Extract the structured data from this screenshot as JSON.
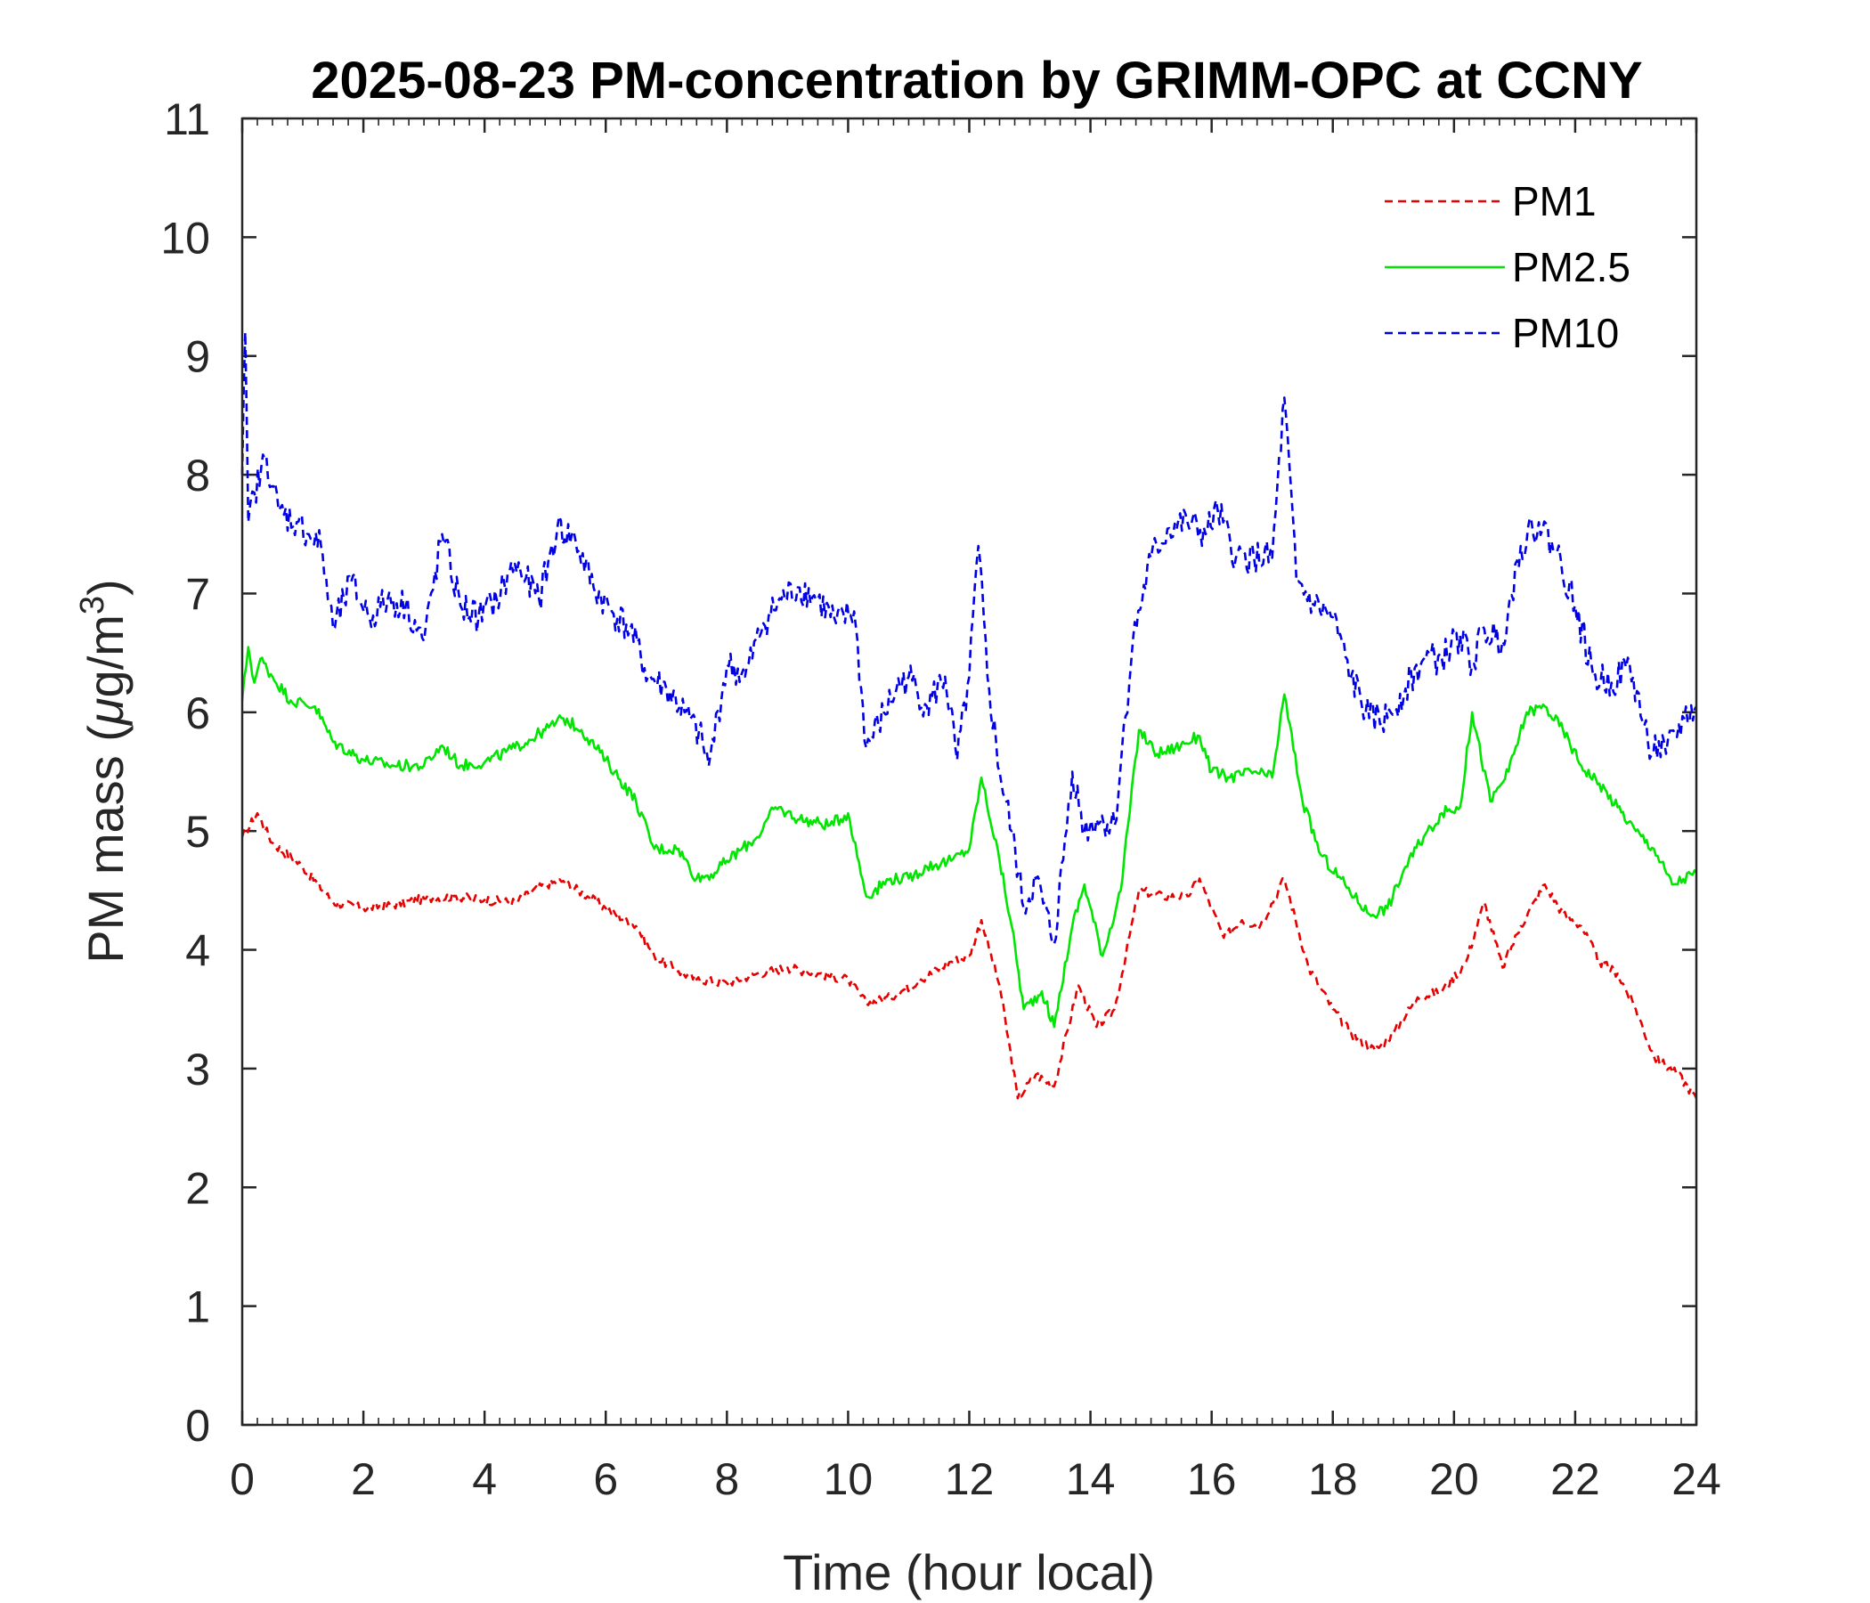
{
  "chart_data": {
    "type": "line",
    "title": "2025-08-23 PM-concentration by GRIMM-OPC at CCNY",
    "xlabel": "Time (hour local)",
    "ylabel_prefix": "PM mass (",
    "ylabel_mu": "μ",
    "ylabel_unit": "g/m",
    "ylabel_sup": "3",
    "ylabel_suffix": ")",
    "xlim": [
      0,
      24
    ],
    "ylim": [
      0,
      11
    ],
    "xticks": [
      0,
      2,
      4,
      6,
      8,
      10,
      12,
      14,
      16,
      18,
      20,
      22,
      24
    ],
    "xtick_labels": [
      "0",
      "2",
      "4",
      "6",
      "8",
      "10",
      "12",
      "14",
      "16",
      "18",
      "20",
      "22",
      "24"
    ],
    "yticks": [
      0,
      1,
      2,
      3,
      4,
      5,
      6,
      7,
      8,
      9,
      10,
      11
    ],
    "ytick_labels": [
      "0",
      "1",
      "2",
      "3",
      "4",
      "5",
      "6",
      "7",
      "8",
      "9",
      "10",
      "11"
    ],
    "legend_position": "top-right",
    "series": [
      {
        "name": "PM1",
        "color": "#e60000",
        "style": "dashed",
        "x": [
          0,
          0.25,
          0.5,
          1,
          1.5,
          2,
          2.5,
          3,
          3.5,
          4,
          4.5,
          5,
          5.3,
          5.7,
          6,
          6.5,
          6.8,
          7.2,
          7.5,
          8,
          8.5,
          9,
          9.5,
          10,
          10.3,
          10.7,
          11.2,
          11.7,
          12,
          12.2,
          12.5,
          12.8,
          13.1,
          13.4,
          13.8,
          14.1,
          14.4,
          14.8,
          15.2,
          15.6,
          15.8,
          16.2,
          16.5,
          16.8,
          17.2,
          17.6,
          18,
          18.3,
          18.7,
          19,
          19.4,
          19.8,
          20.2,
          20.5,
          20.8,
          21.1,
          21.5,
          21.8,
          22.1,
          22.4,
          22.7,
          23,
          23.3,
          23.7,
          24
        ],
        "values": [
          4.95,
          5.15,
          4.9,
          4.7,
          4.4,
          4.35,
          4.38,
          4.43,
          4.45,
          4.42,
          4.4,
          4.55,
          4.58,
          4.45,
          4.35,
          4.2,
          3.95,
          3.82,
          3.75,
          3.72,
          3.8,
          3.85,
          3.8,
          3.75,
          3.55,
          3.6,
          3.75,
          3.9,
          3.95,
          4.25,
          3.7,
          2.75,
          2.95,
          2.85,
          3.7,
          3.35,
          3.5,
          4.5,
          4.45,
          4.45,
          4.6,
          4.1,
          4.25,
          4.2,
          4.6,
          3.85,
          3.5,
          3.3,
          3.15,
          3.3,
          3.6,
          3.65,
          3.9,
          4.4,
          3.85,
          4.2,
          4.55,
          4.3,
          4.2,
          3.9,
          3.8,
          3.5,
          3.1,
          2.95,
          2.75
        ]
      },
      {
        "name": "PM2.5",
        "color": "#00e600",
        "style": "solid",
        "x": [
          0,
          0.1,
          0.2,
          0.3,
          0.5,
          0.8,
          1.2,
          1.5,
          2,
          2.5,
          3,
          3.3,
          3.6,
          4,
          4.5,
          5,
          5.3,
          5.6,
          6,
          6.5,
          6.8,
          7.2,
          7.5,
          7.8,
          8,
          8.5,
          8.8,
          9.2,
          9.7,
          10,
          10.3,
          10.7,
          11,
          11.3,
          11.7,
          12,
          12.2,
          12.5,
          12.7,
          12.9,
          13.2,
          13.4,
          13.7,
          13.9,
          14.2,
          14.5,
          14.8,
          15.1,
          15.4,
          15.8,
          16,
          16.3,
          16.7,
          17,
          17.2,
          17.5,
          17.8,
          18.2,
          18.6,
          18.9,
          19.2,
          19.5,
          19.8,
          20.1,
          20.3,
          20.6,
          20.9,
          21.2,
          21.5,
          21.8,
          22.1,
          22.4,
          22.7,
          23,
          23.3,
          23.6,
          24
        ],
        "values": [
          6.1,
          6.55,
          6.25,
          6.45,
          6.3,
          6.1,
          6.05,
          5.75,
          5.6,
          5.55,
          5.55,
          5.72,
          5.55,
          5.58,
          5.7,
          5.85,
          5.95,
          5.85,
          5.6,
          5.25,
          4.85,
          4.85,
          4.6,
          4.65,
          4.75,
          4.95,
          5.2,
          5.1,
          5.05,
          5.15,
          4.45,
          4.6,
          4.6,
          4.7,
          4.75,
          4.85,
          5.45,
          4.75,
          4.2,
          3.5,
          3.65,
          3.35,
          4.2,
          4.55,
          3.95,
          4.5,
          5.85,
          5.65,
          5.7,
          5.8,
          5.5,
          5.45,
          5.5,
          5.45,
          6.15,
          5.25,
          4.8,
          4.55,
          4.3,
          4.35,
          4.7,
          4.95,
          5.15,
          5.2,
          6.0,
          5.25,
          5.5,
          6.0,
          6.05,
          5.85,
          5.55,
          5.4,
          5.2,
          5.0,
          4.85,
          4.55,
          4.65
        ]
      },
      {
        "name": "PM10",
        "color": "#0000e6",
        "style": "dashed",
        "x": [
          0,
          0.05,
          0.1,
          0.2,
          0.4,
          0.6,
          0.9,
          1.1,
          1.3,
          1.5,
          1.8,
          2.1,
          2.4,
          2.7,
          3.0,
          3.3,
          3.6,
          3.9,
          4.2,
          4.5,
          4.9,
          5.2,
          5.5,
          5.8,
          6.1,
          6.4,
          6.7,
          7.0,
          7.3,
          7.6,
          7.7,
          8.0,
          8.3,
          8.6,
          8.9,
          9.2,
          9.5,
          9.8,
          10.1,
          10.3,
          10.5,
          10.8,
          11.0,
          11.3,
          11.6,
          11.8,
          12.0,
          12.15,
          12.3,
          12.5,
          12.7,
          12.9,
          13.1,
          13.4,
          13.7,
          13.9,
          14.1,
          14.4,
          14.7,
          15.0,
          15.3,
          15.6,
          15.9,
          16.1,
          16.4,
          16.7,
          17.0,
          17.2,
          17.4,
          17.7,
          18.0,
          18.3,
          18.6,
          18.9,
          19.2,
          19.5,
          19.8,
          20.1,
          20.3,
          20.5,
          20.8,
          21.1,
          21.4,
          21.7,
          22.0,
          22.3,
          22.6,
          22.9,
          23.2,
          23.5,
          23.8,
          24
        ],
        "values": [
          8.0,
          9.2,
          7.6,
          7.85,
          8.15,
          7.7,
          7.6,
          7.5,
          7.4,
          6.7,
          7.1,
          6.8,
          6.95,
          6.9,
          6.6,
          7.5,
          6.9,
          6.8,
          6.95,
          7.25,
          6.95,
          7.55,
          7.45,
          7.05,
          6.85,
          6.7,
          6.3,
          6.2,
          6.0,
          5.75,
          5.55,
          6.4,
          6.3,
          6.75,
          6.95,
          7.05,
          6.95,
          6.75,
          6.85,
          5.7,
          5.9,
          6.2,
          6.3,
          6.05,
          6.3,
          5.6,
          6.3,
          7.4,
          6.3,
          5.5,
          5.0,
          4.35,
          4.6,
          4.05,
          5.5,
          5.0,
          5.1,
          5.05,
          6.6,
          7.3,
          7.55,
          7.6,
          7.5,
          7.7,
          7.3,
          7.3,
          7.3,
          8.65,
          7.1,
          6.9,
          6.8,
          6.3,
          5.95,
          5.95,
          6.2,
          6.45,
          6.45,
          6.65,
          6.4,
          6.7,
          6.6,
          7.4,
          7.6,
          7.35,
          6.9,
          6.3,
          6.25,
          6.4,
          5.75,
          5.65,
          5.95,
          6.05
        ]
      }
    ]
  }
}
